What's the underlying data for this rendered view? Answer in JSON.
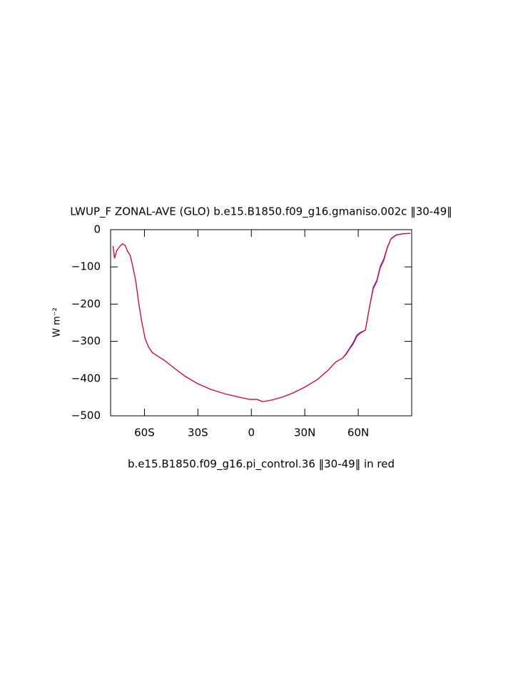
{
  "chart_data": {
    "type": "line",
    "title": "LWUP_F ZONAL-AVE (GLO) b.e15.B1850.f09_g16.gmaniso.002c ‖30-49‖",
    "subtitle": "b.e15.B1850.f09_g16.pi_control.36 ‖30-49‖ in red",
    "y_label": "W m⁻²",
    "x": [
      -77.6,
      -76.8,
      -75.6,
      -74,
      -72.4,
      -70.8,
      -69.6,
      -68,
      -66.4,
      -64.8,
      -63.2,
      -61.6,
      -59.6,
      -57.6,
      -55.6,
      -52.8,
      -48.8,
      -44.8,
      -40.8,
      -36.8,
      -30,
      -22.8,
      -14.8,
      -6.8,
      -0.8,
      3.2,
      6.4,
      11.2,
      17.2,
      23.2,
      30,
      37.2,
      43.2,
      47.2,
      51.2,
      53.2,
      55.2,
      57.2,
      59.2,
      61.2,
      64,
      66.4,
      68.4,
      70.4,
      72.4,
      74.4,
      76.4,
      78.4,
      81.2,
      85.2,
      89.2
    ],
    "series": [
      {
        "name": "b.e15.B1850.f09_g16.gmaniso.002c",
        "color": "#3030ff",
        "values": [
          -44,
          -77,
          -57,
          -46,
          -38,
          -42,
          -57,
          -69,
          -102,
          -140,
          -197,
          -245,
          -293,
          -316,
          -330,
          -339,
          -351,
          -366,
          -381,
          -395,
          -414,
          -429,
          -441,
          -450,
          -456,
          -456,
          -462,
          -458,
          -450,
          -439,
          -423,
          -402,
          -377,
          -356,
          -345,
          -333,
          -318,
          -303,
          -283,
          -276,
          -270,
          -205,
          -155,
          -136,
          -98,
          -78,
          -46,
          -24,
          -14,
          -11,
          -10
        ]
      },
      {
        "name": "b.e15.B1850.f09_g16.pi_control.36",
        "color": "#e0002a",
        "values": [
          -44,
          -77,
          -57,
          -46,
          -38,
          -42,
          -57,
          -69,
          -102,
          -140,
          -197,
          -245,
          -293,
          -316,
          -330,
          -339,
          -351,
          -366,
          -381,
          -395,
          -414,
          -429,
          -441,
          -450,
          -456,
          -456,
          -462,
          -458,
          -450,
          -439,
          -423,
          -402,
          -377,
          -356,
          -345,
          -335,
          -320,
          -307,
          -287,
          -278,
          -270,
          -207,
          -159,
          -140,
          -102,
          -82,
          -48,
          -25,
          -15,
          -11,
          -10
        ]
      }
    ],
    "xlim": [
      -79,
      90
    ],
    "xticks": [
      {
        "value": -60,
        "label": "60S"
      },
      {
        "value": -30,
        "label": "30S"
      },
      0,
      {
        "value": 30,
        "label": "30N"
      },
      {
        "value": 60,
        "label": "60N"
      }
    ],
    "ylim": [
      -500,
      0
    ],
    "yticks": [
      0,
      {
        "value": -100,
        "label": "−100"
      },
      {
        "value": -200,
        "label": "−200"
      },
      {
        "value": -300,
        "label": "−300"
      },
      {
        "value": -400,
        "label": "−400"
      },
      {
        "value": -500,
        "label": "−500"
      }
    ]
  }
}
